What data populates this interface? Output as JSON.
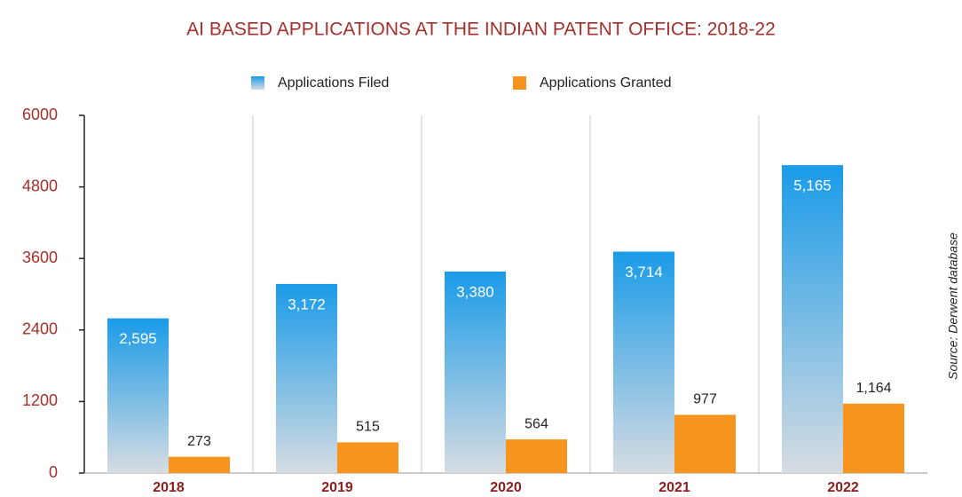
{
  "chart_data": {
    "type": "bar",
    "title": "AI BASED APPLICATIONS AT THE INDIAN PATENT OFFICE: 2018-22",
    "categories": [
      "2018",
      "2019",
      "2020",
      "2021",
      "2022"
    ],
    "series": [
      {
        "name": "Applications Filed",
        "color": "#1a9be8",
        "values": [
          2595,
          3172,
          3380,
          3714,
          5165
        ],
        "value_labels": [
          "2,595",
          "3,172",
          "3,380",
          "3,714",
          "5,165"
        ]
      },
      {
        "name": "Applications Granted",
        "color": "#f7941d",
        "values": [
          273,
          515,
          564,
          977,
          1164
        ],
        "value_labels": [
          "273",
          "515",
          "564",
          "977",
          "1,164"
        ]
      }
    ],
    "ylim": [
      0,
      6000
    ],
    "yticks": [
      0,
      1200,
      2400,
      3600,
      4800,
      6000
    ],
    "grid": false,
    "source": "Source: Derwent database"
  }
}
